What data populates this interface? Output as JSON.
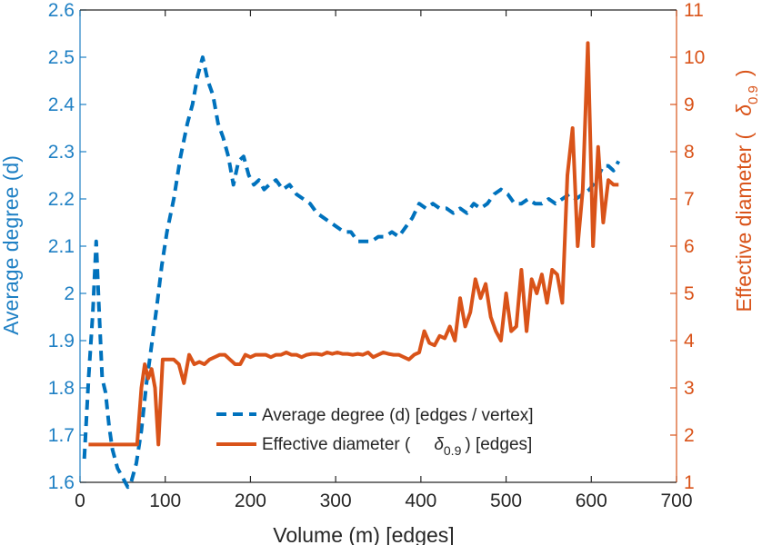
{
  "chart_data": {
    "type": "line",
    "xlabel": "Volume (m) [edges]",
    "xlim": [
      0,
      700
    ],
    "xticks": [
      0,
      100,
      200,
      300,
      400,
      500,
      600,
      700
    ],
    "y_left": {
      "label": "Average degree (d)",
      "lim": [
        1.6,
        2.6
      ],
      "ticks": [
        1.6,
        1.7,
        1.8,
        1.9,
        2,
        2.1,
        2.2,
        2.3,
        2.4,
        2.5,
        2.6
      ],
      "color": "#1f80c4"
    },
    "y_right": {
      "label": "Effective diameter (",
      "label_symbol": "δ",
      "label_sub": "0.9",
      "label_close": ")",
      "lim": [
        1,
        11
      ],
      "ticks": [
        1,
        2,
        3,
        4,
        5,
        6,
        7,
        8,
        9,
        10,
        11
      ],
      "color": "#d95319"
    },
    "series": [
      {
        "name": "Average degree (d) [edges / vertex]",
        "axis": "left",
        "style": "dashed",
        "color": "#0072bd",
        "x": [
          5,
          10,
          15,
          19,
          22,
          26,
          30,
          34,
          38,
          44,
          50,
          56,
          60,
          66,
          72,
          78,
          84,
          90,
          96,
          102,
          110,
          118,
          126,
          132,
          138,
          144,
          150,
          156,
          162,
          168,
          174,
          180,
          186,
          192,
          198,
          204,
          210,
          216,
          222,
          230,
          238,
          246,
          254,
          262,
          270,
          278,
          286,
          294,
          302,
          310,
          318,
          326,
          334,
          342,
          350,
          358,
          366,
          374,
          382,
          390,
          398,
          406,
          414,
          422,
          430,
          438,
          446,
          454,
          462,
          470,
          478,
          486,
          494,
          502,
          510,
          518,
          526,
          534,
          542,
          550,
          558,
          566,
          574,
          582,
          590,
          598,
          606,
          614,
          620,
          626,
          632
        ],
        "y": [
          1.65,
          1.82,
          1.96,
          2.11,
          1.98,
          1.82,
          1.79,
          1.72,
          1.67,
          1.63,
          1.61,
          1.59,
          1.6,
          1.64,
          1.71,
          1.81,
          1.89,
          1.97,
          2.06,
          2.13,
          2.2,
          2.29,
          2.36,
          2.4,
          2.46,
          2.5,
          2.45,
          2.42,
          2.36,
          2.33,
          2.29,
          2.23,
          2.28,
          2.29,
          2.25,
          2.23,
          2.24,
          2.22,
          2.23,
          2.24,
          2.22,
          2.23,
          2.21,
          2.2,
          2.19,
          2.17,
          2.16,
          2.15,
          2.14,
          2.13,
          2.13,
          2.11,
          2.11,
          2.11,
          2.12,
          2.12,
          2.13,
          2.12,
          2.14,
          2.16,
          2.19,
          2.18,
          2.19,
          2.18,
          2.18,
          2.17,
          2.18,
          2.17,
          2.19,
          2.18,
          2.19,
          2.21,
          2.22,
          2.21,
          2.19,
          2.19,
          2.2,
          2.19,
          2.19,
          2.2,
          2.19,
          2.2,
          2.21,
          2.2,
          2.21,
          2.22,
          2.24,
          2.27,
          2.27,
          2.26,
          2.28
        ]
      },
      {
        "name": "Effective diameter (",
        "name_symbol": "δ",
        "name_sub": "0.9",
        "name_suffix": ") [edges]",
        "axis": "right",
        "style": "solid",
        "color": "#d95319",
        "x": [
          10,
          20,
          30,
          40,
          50,
          60,
          67,
          72,
          76,
          80,
          84,
          88,
          92,
          97,
          102,
          106,
          110,
          116,
          122,
          128,
          134,
          140,
          146,
          152,
          158,
          164,
          170,
          176,
          182,
          188,
          194,
          200,
          206,
          212,
          218,
          224,
          230,
          236,
          242,
          248,
          254,
          260,
          266,
          272,
          278,
          284,
          290,
          296,
          302,
          308,
          314,
          320,
          326,
          332,
          338,
          344,
          350,
          356,
          362,
          368,
          374,
          380,
          386,
          392,
          398,
          404,
          410,
          416,
          422,
          428,
          434,
          440,
          446,
          452,
          458,
          464,
          470,
          476,
          482,
          488,
          494,
          500,
          506,
          512,
          518,
          524,
          530,
          536,
          542,
          548,
          554,
          560,
          566,
          572,
          578,
          584,
          590,
          596,
          602,
          608,
          614,
          620,
          626,
          632
        ],
        "y": [
          1.8,
          1.8,
          1.8,
          1.8,
          1.8,
          1.8,
          1.8,
          3,
          3.5,
          3.2,
          3.4,
          3,
          1.8,
          3.6,
          3.6,
          3.6,
          3.6,
          3.5,
          3.1,
          3.7,
          3.5,
          3.55,
          3.5,
          3.6,
          3.65,
          3.7,
          3.7,
          3.6,
          3.5,
          3.5,
          3.7,
          3.65,
          3.7,
          3.7,
          3.7,
          3.65,
          3.7,
          3.7,
          3.75,
          3.7,
          3.7,
          3.65,
          3.7,
          3.72,
          3.72,
          3.7,
          3.75,
          3.72,
          3.75,
          3.72,
          3.72,
          3.7,
          3.72,
          3.7,
          3.75,
          3.65,
          3.7,
          3.75,
          3.72,
          3.7,
          3.7,
          3.65,
          3.6,
          3.7,
          3.75,
          4.2,
          3.95,
          3.9,
          4.1,
          4.05,
          4.3,
          4,
          4.9,
          4.3,
          4.6,
          5.3,
          4.9,
          5.2,
          4.5,
          4.2,
          4,
          5,
          4.2,
          4.3,
          5.5,
          4.2,
          5.3,
          5,
          5.4,
          4.8,
          5.5,
          5.4,
          4.8,
          7.5,
          8.5,
          6,
          7.2,
          10.3,
          6,
          8.1,
          6.5,
          7.4,
          7.3,
          7.3
        ]
      }
    ],
    "legend": {
      "position": "bottom-center"
    }
  }
}
